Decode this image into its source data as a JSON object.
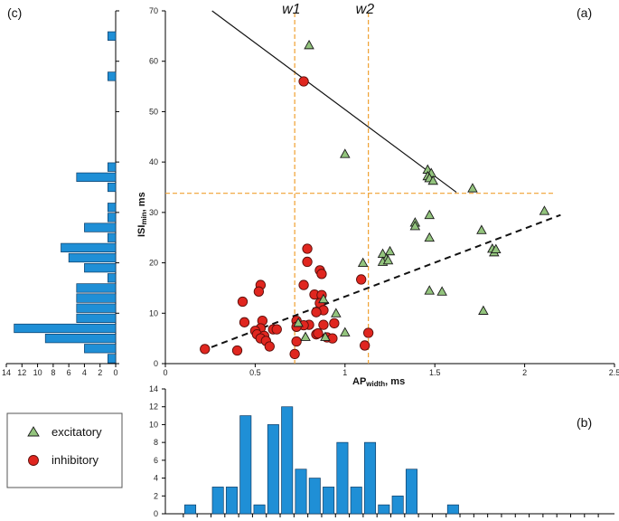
{
  "chart_data": [
    {
      "id": "a",
      "panel_label": "(a)",
      "type": "scatter",
      "xlabel_main": "AP",
      "xlabel_sub": "width",
      "xlabel_unit": ", ms",
      "ylabel_main": "ISI",
      "ylabel_sub": "min",
      "ylabel_unit": ", ms",
      "xlim": [
        0,
        2.5
      ],
      "ylim": [
        0,
        70
      ],
      "xticks": [
        "0",
        "0.5",
        "1",
        "1.5",
        "2",
        "2.5"
      ],
      "yticks": [
        "0",
        "10",
        "20",
        "30",
        "40",
        "50",
        "60",
        "70"
      ],
      "threshold_labels": [
        "w1",
        "w2"
      ],
      "thresholds": {
        "w1": 0.72,
        "w2": 1.13,
        "isi": 33.8
      },
      "fit_lines": {
        "solid": {
          "x": [
            0.26,
            1.62
          ],
          "y": [
            70,
            34
          ]
        },
        "dashed": {
          "x": [
            0.2,
            2.2
          ],
          "y": [
            2.5,
            29.5
          ]
        }
      },
      "series": [
        {
          "name": "excitatory",
          "points": [
            [
              0.8,
              63.2
            ],
            [
              1.0,
              41.6
            ],
            [
              1.46,
              38.5
            ],
            [
              1.48,
              37.8
            ],
            [
              1.46,
              37.2
            ],
            [
              1.47,
              36.8
            ],
            [
              1.49,
              36.3
            ],
            [
              1.71,
              34.8
            ],
            [
              1.47,
              29.5
            ],
            [
              1.39,
              28.0
            ],
            [
              1.39,
              27.3
            ],
            [
              1.76,
              26.5
            ],
            [
              1.47,
              25.0
            ],
            [
              1.25,
              22.3
            ],
            [
              1.21,
              21.8
            ],
            [
              1.23,
              20.8
            ],
            [
              1.21,
              20.2
            ],
            [
              1.24,
              20.5
            ],
            [
              1.1,
              20.0
            ],
            [
              2.11,
              30.3
            ],
            [
              1.82,
              22.8
            ],
            [
              1.83,
              22.1
            ],
            [
              1.84,
              22.7
            ],
            [
              1.47,
              14.5
            ],
            [
              1.54,
              14.3
            ],
            [
              1.77,
              10.5
            ],
            [
              0.88,
              12.8
            ],
            [
              0.95,
              10.0
            ],
            [
              1.0,
              6.2
            ],
            [
              0.89,
              5.3
            ],
            [
              0.78,
              5.3
            ],
            [
              0.74,
              8.1
            ]
          ]
        },
        {
          "name": "inhibitory",
          "points": [
            [
              0.77,
              56.0
            ],
            [
              0.79,
              22.8
            ],
            [
              0.79,
              20.2
            ],
            [
              0.86,
              18.5
            ],
            [
              0.87,
              17.8
            ],
            [
              0.77,
              15.6
            ],
            [
              0.53,
              15.6
            ],
            [
              0.52,
              14.3
            ],
            [
              0.83,
              13.7
            ],
            [
              0.87,
              13.6
            ],
            [
              0.43,
              12.3
            ],
            [
              0.86,
              12.0
            ],
            [
              1.09,
              16.7
            ],
            [
              0.88,
              10.6
            ],
            [
              0.84,
              10.2
            ],
            [
              0.73,
              8.5
            ],
            [
              0.88,
              7.7
            ],
            [
              0.94,
              8.0
            ],
            [
              0.8,
              7.7
            ],
            [
              0.44,
              8.2
            ],
            [
              0.77,
              7.6
            ],
            [
              0.73,
              7.3
            ],
            [
              0.54,
              8.5
            ],
            [
              0.53,
              7.0
            ],
            [
              0.5,
              6.5
            ],
            [
              0.6,
              6.8
            ],
            [
              0.62,
              6.8
            ],
            [
              0.51,
              5.8
            ],
            [
              0.55,
              5.5
            ],
            [
              0.53,
              5.0
            ],
            [
              0.56,
              4.5
            ],
            [
              0.58,
              3.4
            ],
            [
              0.73,
              4.4
            ],
            [
              0.84,
              5.8
            ],
            [
              0.9,
              5.2
            ],
            [
              0.93,
              5.0
            ],
            [
              1.13,
              6.1
            ],
            [
              1.11,
              3.6
            ],
            [
              0.22,
              2.9
            ],
            [
              0.4,
              2.6
            ],
            [
              0.72,
              1.9
            ],
            [
              0.85,
              6.0
            ]
          ]
        }
      ]
    },
    {
      "id": "b",
      "panel_label": "(b)",
      "type": "bar",
      "xlabel": "",
      "ylabel": "",
      "ylim": [
        0,
        14
      ],
      "yticks": [
        "0",
        "2",
        "4",
        "6",
        "8",
        "10",
        "12",
        "14"
      ],
      "bin_start": 0.1,
      "bin_width": 0.077,
      "values": [
        1,
        0,
        3,
        3,
        11,
        1,
        10,
        12,
        5,
        4,
        3,
        8,
        3,
        8,
        1,
        2,
        5,
        0,
        0,
        1,
        0,
        0,
        0,
        0,
        0,
        0,
        0,
        0,
        0,
        0
      ]
    },
    {
      "id": "c",
      "panel_label": "(c)",
      "type": "bar",
      "orientation": "horizontal",
      "xlabel": "",
      "ylabel": "",
      "xlim": [
        0,
        14
      ],
      "xticks": [
        "14",
        "12",
        "10",
        "8",
        "6",
        "4",
        "2",
        "0"
      ],
      "bin_start_ms": 0,
      "bin_width_ms": 2,
      "values": [
        1,
        4,
        9,
        13,
        5,
        5,
        5,
        5,
        1,
        4,
        6,
        7,
        1,
        4,
        1,
        1,
        0,
        1,
        5,
        1,
        0,
        0,
        0,
        0,
        0,
        0,
        0,
        0,
        1,
        0,
        0,
        0,
        1,
        0,
        0
      ]
    }
  ],
  "legend": {
    "items": [
      {
        "label": "excitatory",
        "marker": "triangle"
      },
      {
        "label": "inhibitory",
        "marker": "circle"
      }
    ]
  },
  "colors": {
    "bar": "#1f8fd6",
    "excitatory": "#93c47d",
    "inhibitory": "#e0261f",
    "threshold": "#f0a030"
  }
}
